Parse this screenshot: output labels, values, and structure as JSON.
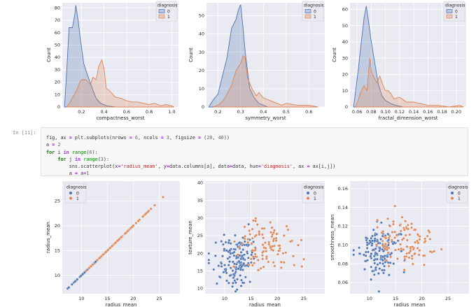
{
  "notebook": {
    "cell_prompt": "In [11]:",
    "code_lines": [
      [
        {
          "t": "fig, ax ",
          "c": ""
        },
        {
          "t": "=",
          "c": "op"
        },
        {
          "t": " plt.subplots(nrows ",
          "c": ""
        },
        {
          "t": "=",
          "c": "op"
        },
        {
          "t": " 6",
          "c": "num"
        },
        {
          "t": ", ncols ",
          "c": ""
        },
        {
          "t": "=",
          "c": "op"
        },
        {
          "t": " 3",
          "c": "num"
        },
        {
          "t": ", figsize ",
          "c": ""
        },
        {
          "t": "=",
          "c": "op"
        },
        {
          "t": " (",
          "c": ""
        },
        {
          "t": "20",
          "c": "num"
        },
        {
          "t": ", ",
          "c": ""
        },
        {
          "t": "40",
          "c": "num"
        },
        {
          "t": "))",
          "c": ""
        }
      ],
      [
        {
          "t": "a ",
          "c": ""
        },
        {
          "t": "=",
          "c": "op"
        },
        {
          "t": " 2",
          "c": "num"
        }
      ],
      [
        {
          "t": "for",
          "c": "kw"
        },
        {
          "t": " i ",
          "c": ""
        },
        {
          "t": "in",
          "c": "op"
        },
        {
          "t": " ",
          "c": ""
        },
        {
          "t": "range",
          "c": "nm"
        },
        {
          "t": "(",
          "c": ""
        },
        {
          "t": "6",
          "c": "num"
        },
        {
          "t": "):",
          "c": ""
        }
      ],
      [
        {
          "t": "    ",
          "c": ""
        },
        {
          "t": "for",
          "c": "kw"
        },
        {
          "t": " j ",
          "c": ""
        },
        {
          "t": "in",
          "c": "op"
        },
        {
          "t": " ",
          "c": ""
        },
        {
          "t": "range",
          "c": "nm"
        },
        {
          "t": "(",
          "c": ""
        },
        {
          "t": "3",
          "c": "num"
        },
        {
          "t": "):",
          "c": ""
        }
      ],
      [
        {
          "t": "        sns.scatterplot(x",
          "c": ""
        },
        {
          "t": "=",
          "c": "op"
        },
        {
          "t": "'radius_mean'",
          "c": "str"
        },
        {
          "t": ", y",
          "c": ""
        },
        {
          "t": "=",
          "c": "op"
        },
        {
          "t": "data.columns[a], data",
          "c": ""
        },
        {
          "t": "=",
          "c": "op"
        },
        {
          "t": "data, hue",
          "c": ""
        },
        {
          "t": "=",
          "c": "op"
        },
        {
          "t": "'diagnosis'",
          "c": "str"
        },
        {
          "t": ", ax ",
          "c": ""
        },
        {
          "t": "=",
          "c": "op"
        },
        {
          "t": " ax[i,j])",
          "c": ""
        }
      ],
      [
        {
          "t": "        a ",
          "c": ""
        },
        {
          "t": "=",
          "c": "op"
        },
        {
          "t": " a",
          "c": ""
        },
        {
          "t": "+",
          "c": "op"
        },
        {
          "t": "1",
          "c": "num"
        }
      ]
    ]
  },
  "colors": {
    "class0": "#4c72b0",
    "class1": "#dd8452",
    "axes_bg": "#eaeaf2",
    "grid": "#ffffff"
  },
  "chart_data": [
    {
      "type": "area",
      "xlabel": "compactness_worst",
      "ylabel": "Count",
      "xticks": [
        "0.2",
        "0.4",
        "0.6",
        "0.8",
        "1.0"
      ],
      "yticks": [
        "0",
        "10",
        "20",
        "30",
        "40",
        "50",
        "60",
        "70",
        "80"
      ],
      "legend": {
        "title": "diagnosis",
        "labels": [
          "0",
          "1"
        ],
        "placement": "top-right"
      },
      "xlim": [
        0.03,
        1.06
      ],
      "ylim": [
        0,
        84
      ],
      "series": [
        {
          "name": "0",
          "points": [
            [
              0.05,
              0
            ],
            [
              0.07,
              30
            ],
            [
              0.09,
              64
            ],
            [
              0.12,
              64
            ],
            [
              0.14,
              74
            ],
            [
              0.15,
              82
            ],
            [
              0.17,
              70
            ],
            [
              0.19,
              55
            ],
            [
              0.22,
              35
            ],
            [
              0.26,
              24
            ],
            [
              0.3,
              14
            ],
            [
              0.33,
              7
            ],
            [
              0.37,
              3
            ],
            [
              0.42,
              1
            ],
            [
              0.5,
              0
            ],
            [
              0.6,
              0
            ],
            [
              1.02,
              0
            ]
          ]
        },
        {
          "name": "1",
          "points": [
            [
              0.07,
              0
            ],
            [
              0.1,
              4
            ],
            [
              0.13,
              9
            ],
            [
              0.16,
              14
            ],
            [
              0.18,
              19
            ],
            [
              0.2,
              22
            ],
            [
              0.24,
              22
            ],
            [
              0.28,
              18
            ],
            [
              0.3,
              24
            ],
            [
              0.33,
              22
            ],
            [
              0.35,
              32
            ],
            [
              0.38,
              38
            ],
            [
              0.4,
              31
            ],
            [
              0.42,
              15
            ],
            [
              0.45,
              13
            ],
            [
              0.5,
              8
            ],
            [
              0.55,
              7
            ],
            [
              0.6,
              5
            ],
            [
              0.65,
              4
            ],
            [
              0.7,
              4
            ],
            [
              0.75,
              3
            ],
            [
              0.8,
              2
            ],
            [
              0.85,
              3
            ],
            [
              0.9,
              1
            ],
            [
              0.95,
              2
            ],
            [
              1.0,
              1
            ],
            [
              1.02,
              0
            ]
          ]
        }
      ]
    },
    {
      "type": "area",
      "xlabel": "symmetry_worst",
      "ylabel": "Count",
      "xticks": [
        "0.2",
        "0.3",
        "0.4",
        "0.5",
        "0.6"
      ],
      "yticks": [
        "0",
        "10",
        "20",
        "30",
        "40",
        "50"
      ],
      "legend": {
        "title": "diagnosis",
        "labels": [
          "0",
          "1"
        ],
        "placement": "top-right"
      },
      "xlim": [
        0.15,
        0.67
      ],
      "ylim": [
        0,
        57
      ],
      "series": [
        {
          "name": "0",
          "points": [
            [
              0.16,
              0
            ],
            [
              0.18,
              4
            ],
            [
              0.2,
              7
            ],
            [
              0.22,
              17
            ],
            [
              0.24,
              27
            ],
            [
              0.26,
              43
            ],
            [
              0.28,
              48
            ],
            [
              0.29,
              53
            ],
            [
              0.3,
              56
            ],
            [
              0.31,
              44
            ],
            [
              0.32,
              30
            ],
            [
              0.33,
              20
            ],
            [
              0.34,
              10
            ],
            [
              0.36,
              5
            ],
            [
              0.38,
              2
            ],
            [
              0.4,
              1
            ],
            [
              0.42,
              0
            ],
            [
              0.64,
              0
            ]
          ]
        },
        {
          "name": "1",
          "points": [
            [
              0.18,
              0
            ],
            [
              0.2,
              1
            ],
            [
              0.22,
              3
            ],
            [
              0.24,
              7
            ],
            [
              0.26,
              12
            ],
            [
              0.28,
              20
            ],
            [
              0.3,
              24
            ],
            [
              0.31,
              28
            ],
            [
              0.32,
              27
            ],
            [
              0.33,
              16
            ],
            [
              0.35,
              10
            ],
            [
              0.37,
              6
            ],
            [
              0.38,
              8
            ],
            [
              0.4,
              5
            ],
            [
              0.42,
              4
            ],
            [
              0.44,
              3
            ],
            [
              0.46,
              2
            ],
            [
              0.48,
              1
            ],
            [
              0.5,
              2
            ],
            [
              0.55,
              1
            ],
            [
              0.6,
              1
            ],
            [
              0.64,
              0
            ]
          ]
        }
      ]
    },
    {
      "type": "area",
      "xlabel": "fractal_dimension_worst",
      "ylabel": "Count",
      "xticks": [
        "0.06",
        "0.08",
        "0.10",
        "0.12",
        "0.14",
        "0.16",
        "0.18",
        "0.20"
      ],
      "yticks": [
        "0",
        "10",
        "20",
        "30",
        "40",
        "50",
        "60"
      ],
      "legend": {
        "title": "diagnosis",
        "labels": [
          "0",
          "1"
        ],
        "placement": "top-right"
      },
      "xlim": [
        0.05,
        0.214
      ],
      "ylim": [
        0,
        64
      ],
      "series": [
        {
          "name": "0",
          "points": [
            [
              0.055,
              0
            ],
            [
              0.058,
              10
            ],
            [
              0.062,
              24
            ],
            [
              0.066,
              40
            ],
            [
              0.07,
              55
            ],
            [
              0.073,
              62
            ],
            [
              0.076,
              53
            ],
            [
              0.08,
              40
            ],
            [
              0.085,
              27
            ],
            [
              0.09,
              14
            ],
            [
              0.095,
              7
            ],
            [
              0.1,
              4
            ],
            [
              0.108,
              2
            ],
            [
              0.115,
              1
            ],
            [
              0.125,
              0
            ],
            [
              0.21,
              0
            ]
          ]
        },
        {
          "name": "1",
          "points": [
            [
              0.058,
              0
            ],
            [
              0.062,
              5
            ],
            [
              0.066,
              10
            ],
            [
              0.07,
              13
            ],
            [
              0.074,
              10
            ],
            [
              0.078,
              30
            ],
            [
              0.08,
              22
            ],
            [
              0.084,
              18
            ],
            [
              0.088,
              15
            ],
            [
              0.092,
              19
            ],
            [
              0.096,
              14
            ],
            [
              0.1,
              10
            ],
            [
              0.104,
              10
            ],
            [
              0.108,
              8
            ],
            [
              0.112,
              5
            ],
            [
              0.12,
              6
            ],
            [
              0.13,
              3
            ],
            [
              0.14,
              3
            ],
            [
              0.15,
              2
            ],
            [
              0.16,
              1
            ],
            [
              0.175,
              1
            ],
            [
              0.19,
              0
            ],
            [
              0.205,
              1
            ],
            [
              0.21,
              0
            ]
          ]
        }
      ]
    },
    {
      "type": "scatter",
      "xlabel": "radius_mean",
      "ylabel": "radius_mean",
      "xticks": [
        "10",
        "15",
        "20",
        "25"
      ],
      "yticks": [
        "10",
        "15",
        "20",
        "25"
      ],
      "legend": {
        "title": "diagnosis",
        "labels": [
          "0",
          "1"
        ],
        "placement": "top-left"
      },
      "xlim": [
        6.3,
        29
      ],
      "ylim": [
        6.3,
        29
      ],
      "description": "points lie on the line y = x; class 0 spans ~7-17, class 1 spans ~11-28"
    },
    {
      "type": "scatter",
      "xlabel": "radius_mean",
      "ylabel": "texture_mean",
      "xticks": [
        "10",
        "15",
        "20",
        "25"
      ],
      "yticks": [
        "10",
        "15",
        "20",
        "25",
        "30",
        "35",
        "40"
      ],
      "legend": {
        "title": "diagnosis",
        "labels": [
          "0",
          "1"
        ],
        "placement": "top-right"
      },
      "xlim": [
        6.3,
        29
      ],
      "ylim": [
        8.5,
        40.5
      ],
      "description": "class 0 centred ~ (12.1, 17.9), class 1 centred ~ (17.5, 21.6)"
    },
    {
      "type": "scatter",
      "xlabel": "radius_mean",
      "ylabel": "smoothness_mean",
      "xticks": [
        "10",
        "15",
        "20",
        "25"
      ],
      "yticks": [
        "0.06",
        "0.08",
        "0.10",
        "0.12",
        "0.14",
        "0.16"
      ],
      "legend": {
        "title": "diagnosis",
        "labels": [
          "0",
          "1"
        ],
        "placement": "top-right"
      },
      "xlim": [
        6.3,
        29
      ],
      "ylim": [
        0.048,
        0.168
      ],
      "description": "class 0 centred ~ (12.1, 0.092), class 1 centred ~ (17.5, 0.103)"
    }
  ]
}
